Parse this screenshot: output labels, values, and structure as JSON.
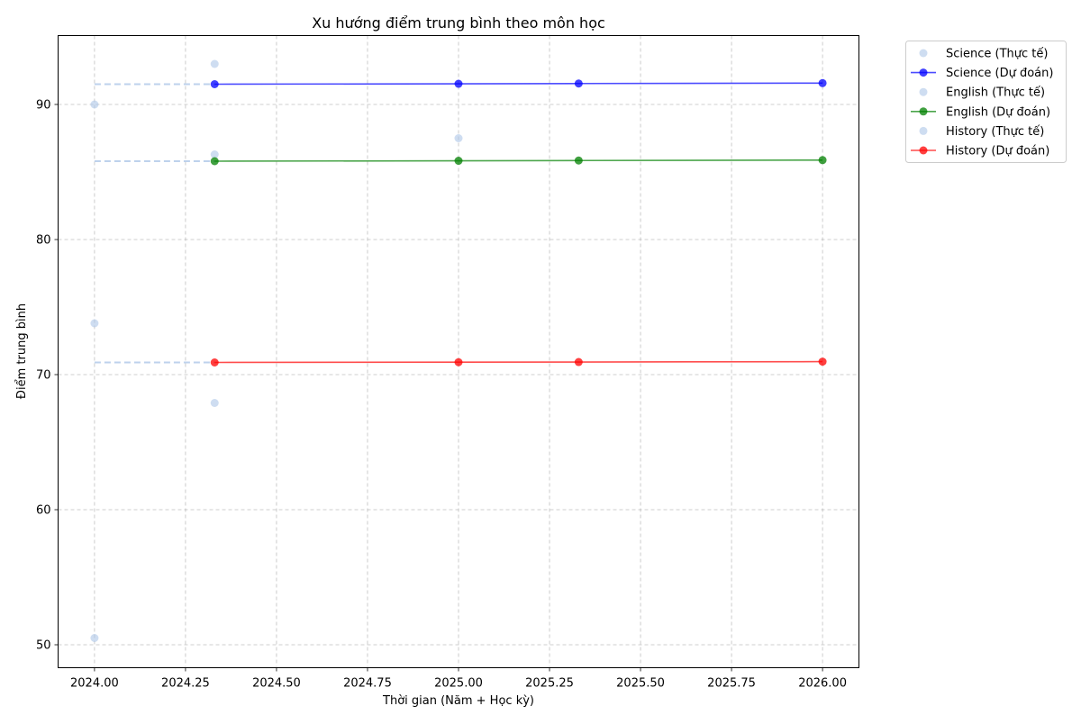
{
  "chart_data": {
    "type": "line",
    "title": "Xu hướng điểm trung bình theo môn học",
    "xlabel": "Thời gian (Năm + Học kỳ)",
    "ylabel": "Điểm trung bình",
    "xlim": [
      2023.9,
      2026.1
    ],
    "ylim": [
      48.3,
      95.1
    ],
    "x_ticks": [
      2024.0,
      2024.25,
      2024.5,
      2024.75,
      2025.0,
      2025.25,
      2025.5,
      2025.75,
      2026.0
    ],
    "x_tick_labels": [
      "2024.00",
      "2024.25",
      "2024.50",
      "2024.75",
      "2025.00",
      "2025.25",
      "2025.50",
      "2025.75",
      "2026.00"
    ],
    "y_ticks": [
      50,
      60,
      70,
      80,
      90
    ],
    "y_tick_labels": [
      "50",
      "60",
      "70",
      "80",
      "90"
    ],
    "grid": true,
    "legend_position": "outside-top-right",
    "series": [
      {
        "name": "Science (Thực tế)",
        "kind": "actual",
        "color": "#aec7e8",
        "points": [
          [
            2024.0,
            90.0
          ],
          [
            2024.33,
            93.0
          ]
        ]
      },
      {
        "name": "Science (Dự đoán)",
        "kind": "forecast",
        "color": "#0000ff",
        "connector": {
          "from": [
            2024.0,
            91.5
          ],
          "to": [
            2024.33,
            91.5
          ]
        },
        "points": [
          [
            2024.33,
            91.5
          ],
          [
            2025.0,
            91.53
          ],
          [
            2025.33,
            91.55
          ],
          [
            2026.0,
            91.58
          ]
        ]
      },
      {
        "name": "English (Thực tế)",
        "kind": "actual",
        "color": "#aec7e8",
        "points": [
          [
            2024.33,
            86.3
          ],
          [
            2025.0,
            87.5
          ]
        ]
      },
      {
        "name": "English (Dự đoán)",
        "kind": "forecast",
        "color": "#008000",
        "connector": {
          "from": [
            2024.0,
            85.8
          ],
          "to": [
            2024.33,
            85.8
          ]
        },
        "points": [
          [
            2024.33,
            85.8
          ],
          [
            2025.0,
            85.83
          ],
          [
            2025.33,
            85.85
          ],
          [
            2026.0,
            85.88
          ]
        ]
      },
      {
        "name": "History (Thực tế)",
        "kind": "actual",
        "color": "#aec7e8",
        "points": [
          [
            2024.0,
            73.8
          ],
          [
            2024.0,
            50.5
          ],
          [
            2024.33,
            67.9
          ]
        ]
      },
      {
        "name": "History (Dự đoán)",
        "kind": "forecast",
        "color": "#ff0000",
        "connector": {
          "from": [
            2024.0,
            70.9
          ],
          "to": [
            2024.33,
            70.9
          ]
        },
        "points": [
          [
            2024.33,
            70.9
          ],
          [
            2025.0,
            70.92
          ],
          [
            2025.33,
            70.93
          ],
          [
            2026.0,
            70.96
          ]
        ]
      }
    ]
  }
}
